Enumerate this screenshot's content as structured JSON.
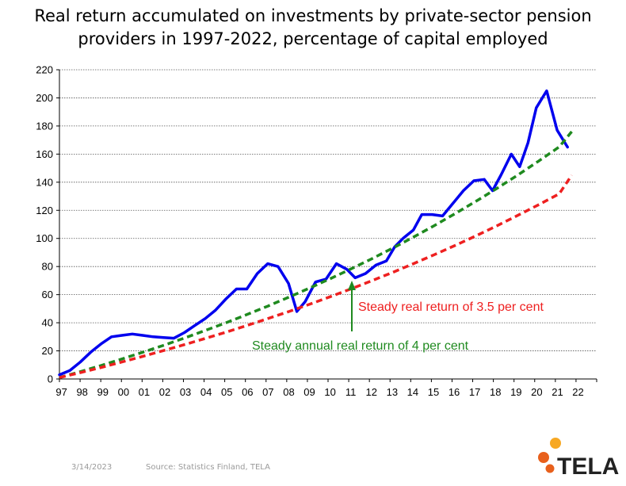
{
  "title": {
    "line1": "Real return accumulated on investments by private-sector pension",
    "line2": "providers in 1997-2022, percentage of capital employed"
  },
  "footer": {
    "date": "3/14/2023",
    "source": "Source: Statistics Finland, TELA"
  },
  "logo": {
    "text": "TELA",
    "colors": [
      "#f7a823",
      "#e8601c"
    ]
  },
  "colors": {
    "actual": "#0000ee",
    "steady_4": "#1f8a1f",
    "steady_3_5": "#ee2020",
    "grid": "#555555"
  },
  "chart_data": {
    "type": "line",
    "title": "Real return accumulated on investments by private-sector pension providers in 1997-2022, percentage of capital employed",
    "xlabel": "",
    "ylabel": "",
    "ylim": [
      0,
      220
    ],
    "xlim": [
      1997,
      2022.8
    ],
    "grid": true,
    "x_tick_labels": [
      "97",
      "98",
      "99",
      "00",
      "01",
      "02",
      "03",
      "04",
      "05",
      "06",
      "07",
      "08",
      "09",
      "10",
      "11",
      "12",
      "13",
      "14",
      "15",
      "16",
      "17",
      "18",
      "19",
      "20",
      "21",
      "22"
    ],
    "y_ticks": [
      0,
      20,
      40,
      60,
      80,
      100,
      120,
      140,
      160,
      180,
      200,
      220
    ],
    "series": [
      {
        "style": "solid",
        "color": "#0000ee",
        "points": [
          [
            1997.0,
            3
          ],
          [
            1997.5,
            6
          ],
          [
            1998.0,
            12
          ],
          [
            1998.5,
            19
          ],
          [
            1999.0,
            25
          ],
          [
            1999.5,
            30
          ],
          [
            2000.0,
            31
          ],
          [
            2000.5,
            32
          ],
          [
            2001.0,
            31
          ],
          [
            2001.5,
            30
          ],
          [
            2002.0,
            29.5
          ],
          [
            2002.5,
            29
          ],
          [
            2003.0,
            33
          ],
          [
            2003.5,
            38
          ],
          [
            2004.0,
            43
          ],
          [
            2004.5,
            49
          ],
          [
            2005.0,
            57
          ],
          [
            2005.5,
            64
          ],
          [
            2006.0,
            64
          ],
          [
            2006.5,
            75
          ],
          [
            2007.0,
            82
          ],
          [
            2007.5,
            80
          ],
          [
            2008.0,
            68
          ],
          [
            2008.4,
            48
          ],
          [
            2008.8,
            55
          ],
          [
            2009.3,
            69
          ],
          [
            2009.8,
            71
          ],
          [
            2010.3,
            82
          ],
          [
            2010.8,
            78
          ],
          [
            2011.2,
            72
          ],
          [
            2011.7,
            75
          ],
          [
            2012.2,
            81
          ],
          [
            2012.7,
            84
          ],
          [
            2013.1,
            94
          ],
          [
            2013.5,
            100
          ],
          [
            2014.0,
            106
          ],
          [
            2014.4,
            117
          ],
          [
            2014.9,
            117
          ],
          [
            2015.4,
            116
          ],
          [
            2015.9,
            125
          ],
          [
            2016.4,
            134
          ],
          [
            2016.9,
            141
          ],
          [
            2017.4,
            142
          ],
          [
            2017.8,
            134
          ],
          [
            2018.2,
            145
          ],
          [
            2018.7,
            160
          ],
          [
            2019.1,
            151
          ],
          [
            2019.5,
            168
          ],
          [
            2019.9,
            193
          ],
          [
            2020.4,
            205
          ],
          [
            2020.9,
            177
          ],
          [
            2021.4,
            165
          ]
        ]
      },
      {
        "style": "dashed",
        "color": "#1f8a1f",
        "points": [
          [
            1997.0,
            1
          ],
          [
            1998,
            5.2
          ],
          [
            1999,
            9.6
          ],
          [
            2000,
            14.2
          ],
          [
            2001,
            19.0
          ],
          [
            2002,
            23.9
          ],
          [
            2003,
            29.1
          ],
          [
            2004,
            34.5
          ],
          [
            2005,
            40.0
          ],
          [
            2006,
            45.8
          ],
          [
            2007,
            51.8
          ],
          [
            2008,
            58.1
          ],
          [
            2009,
            64.6
          ],
          [
            2010,
            71.3
          ],
          [
            2011,
            78.3
          ],
          [
            2012,
            85.5
          ],
          [
            2013,
            93.1
          ],
          [
            2014,
            100.9
          ],
          [
            2015,
            109.1
          ],
          [
            2016,
            117.6
          ],
          [
            2017,
            126.4
          ],
          [
            2018,
            135.5
          ],
          [
            2019,
            145.0
          ],
          [
            2020,
            154.9
          ],
          [
            2021,
            165.1
          ],
          [
            2021.6,
            176
          ]
        ]
      },
      {
        "style": "dashed",
        "color": "#ee2020",
        "points": [
          [
            1997.0,
            1
          ],
          [
            1998,
            4.5
          ],
          [
            1999,
            8.2
          ],
          [
            2000,
            12.1
          ],
          [
            2001,
            16.1
          ],
          [
            2002,
            20.2
          ],
          [
            2003,
            24.4
          ],
          [
            2004,
            28.8
          ],
          [
            2005,
            33.3
          ],
          [
            2006,
            38.0
          ],
          [
            2007,
            42.9
          ],
          [
            2008,
            47.9
          ],
          [
            2009,
            53.1
          ],
          [
            2010,
            58.5
          ],
          [
            2011,
            64.1
          ],
          [
            2012,
            69.9
          ],
          [
            2013,
            75.8
          ],
          [
            2014,
            82.0
          ],
          [
            2015,
            88.4
          ],
          [
            2016,
            95.0
          ],
          [
            2017,
            101.8
          ],
          [
            2018,
            108.9
          ],
          [
            2019,
            116.3
          ],
          [
            2020,
            123.9
          ],
          [
            2021,
            131.7
          ],
          [
            2021.6,
            145
          ]
        ]
      }
    ],
    "annotations": [
      {
        "text": "Steady real return of 3.5 per cent",
        "color": "#ee2020"
      },
      {
        "text": "Steady annual real return of 4 per cent",
        "color": "#1f8a1f"
      }
    ]
  }
}
